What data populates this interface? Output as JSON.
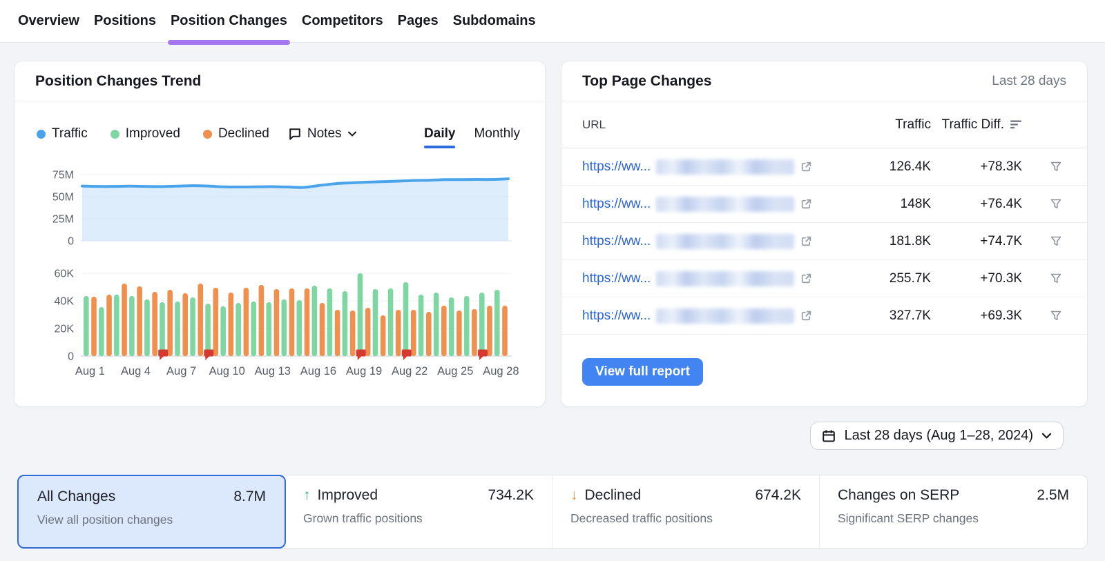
{
  "colors": {
    "accent_purple": "#a678ef",
    "accent_blue": "#2b6de0",
    "traffic_blue": "#49a4ec",
    "traffic_fill": "#bcdcf7",
    "improved_green": "#7ed7a2",
    "declined_orange": "#f0904e",
    "note_red": "#d5392f",
    "button_blue": "#4384f3",
    "link_blue": "#2a63d9"
  },
  "nav": {
    "tabs": [
      {
        "label": "Overview",
        "active": false
      },
      {
        "label": "Positions",
        "active": false
      },
      {
        "label": "Position Changes",
        "active": true
      },
      {
        "label": "Competitors",
        "active": false
      },
      {
        "label": "Pages",
        "active": false
      },
      {
        "label": "Subdomains",
        "active": false
      }
    ]
  },
  "trend_card": {
    "title": "Position Changes Trend",
    "legend": [
      {
        "label": "Traffic",
        "color": "#49a4ec"
      },
      {
        "label": "Improved",
        "color": "#7ed7a2"
      },
      {
        "label": "Declined",
        "color": "#f0904e"
      }
    ],
    "notes_label": "Notes",
    "period_tabs": [
      {
        "label": "Daily",
        "active": true
      },
      {
        "label": "Monthly",
        "active": false
      }
    ]
  },
  "chart_data": [
    {
      "type": "area",
      "name": "Traffic",
      "unit": "M",
      "ylim": [
        0,
        75
      ],
      "y_ticks": [
        {
          "label": "75M",
          "value": 75
        },
        {
          "label": "50M",
          "value": 50
        },
        {
          "label": "25M",
          "value": 25
        },
        {
          "label": "0",
          "value": 0
        }
      ],
      "categories": [
        "Aug 1",
        "Aug 2",
        "Aug 3",
        "Aug 4",
        "Aug 5",
        "Aug 6",
        "Aug 7",
        "Aug 8",
        "Aug 9",
        "Aug 10",
        "Aug 11",
        "Aug 12",
        "Aug 13",
        "Aug 14",
        "Aug 15",
        "Aug 16",
        "Aug 17",
        "Aug 18",
        "Aug 19",
        "Aug 20",
        "Aug 21",
        "Aug 22",
        "Aug 23",
        "Aug 24",
        "Aug 25",
        "Aug 26",
        "Aug 27",
        "Aug 28"
      ],
      "values": [
        62,
        61.6,
        61.6,
        61.9,
        61.6,
        61.4,
        61.9,
        62.4,
        62,
        61.1,
        60.9,
        61.1,
        61.3,
        60.9,
        60.4,
        62.6,
        64.6,
        65.6,
        66.4,
        67,
        67.6,
        68.3,
        68.6,
        69.3,
        69.3,
        69.5,
        69.5,
        70.2
      ]
    },
    {
      "type": "bar",
      "unit": "K",
      "ylim": [
        0,
        60
      ],
      "y_ticks": [
        {
          "label": "60K",
          "value": 60
        },
        {
          "label": "40K",
          "value": 40
        },
        {
          "label": "20K",
          "value": 20
        },
        {
          "label": "0",
          "value": 0
        }
      ],
      "categories": [
        "Aug 1",
        "Aug 2",
        "Aug 3",
        "Aug 4",
        "Aug 5",
        "Aug 6",
        "Aug 7",
        "Aug 8",
        "Aug 9",
        "Aug 10",
        "Aug 11",
        "Aug 12",
        "Aug 13",
        "Aug 14",
        "Aug 15",
        "Aug 16",
        "Aug 17",
        "Aug 18",
        "Aug 19",
        "Aug 20",
        "Aug 21",
        "Aug 22",
        "Aug 23",
        "Aug 24",
        "Aug 25",
        "Aug 26",
        "Aug 27",
        "Aug 28"
      ],
      "x_tick_labels": [
        "Aug 1",
        "Aug 4",
        "Aug 7",
        "Aug 10",
        "Aug 13",
        "Aug 16",
        "Aug 19",
        "Aug 22",
        "Aug 25",
        "Aug 28"
      ],
      "series": [
        {
          "name": "Improved",
          "color": "#7ed7a2",
          "values": [
            43.5,
            35.5,
            44.5,
            43.5,
            41,
            39,
            39.5,
            42.5,
            38,
            36,
            38.5,
            39.5,
            39,
            41,
            40.5,
            51,
            49,
            47,
            60,
            48.5,
            49,
            53.5,
            44.5,
            46,
            42.5,
            43.5,
            46,
            48
          ]
        },
        {
          "name": "Declined",
          "color": "#f0904e",
          "values": [
            43,
            44.5,
            52.5,
            50.5,
            46.5,
            48,
            45.5,
            52.5,
            49.5,
            46,
            49.5,
            51.5,
            48.5,
            49,
            49,
            38.5,
            33.5,
            33,
            35,
            29.5,
            33.5,
            33.5,
            32,
            36.5,
            33,
            34,
            36.5,
            36.5
          ]
        }
      ],
      "notes": {
        "color": "#d5392f",
        "days": [
          "Aug 6",
          "Aug 9",
          "Aug 19",
          "Aug 22",
          "Aug 27"
        ]
      }
    }
  ],
  "top_pages_card": {
    "title": "Top Page Changes",
    "period": "Last 28 days",
    "columns": {
      "url": "URL",
      "traffic": "Traffic",
      "diff": "Traffic Diff."
    },
    "url_prefix": "https://ww...",
    "rows": [
      {
        "traffic": "126.4K",
        "diff": "+78.3K"
      },
      {
        "traffic": "148K",
        "diff": "+76.4K"
      },
      {
        "traffic": "181.8K",
        "diff": "+74.7K"
      },
      {
        "traffic": "255.7K",
        "diff": "+70.3K"
      },
      {
        "traffic": "327.7K",
        "diff": "+69.3K"
      }
    ],
    "button_label": "View full report"
  },
  "date_selector": {
    "label": "Last 28 days (Aug 1–28, 2024)"
  },
  "summary_cards": [
    {
      "title": "All Changes",
      "value": "8.7M",
      "subtitle": "View all position changes",
      "selected": true
    },
    {
      "title": "Improved",
      "value": "734.2K",
      "subtitle": "Grown traffic positions",
      "arrow": "↑",
      "arrow_color": "#33b579"
    },
    {
      "title": "Declined",
      "value": "674.2K",
      "subtitle": "Decreased traffic positions",
      "arrow": "↓",
      "arrow_color": "#e98b3f"
    },
    {
      "title": "Changes on SERP",
      "value": "2.5M",
      "subtitle": "Significant SERP changes"
    }
  ]
}
